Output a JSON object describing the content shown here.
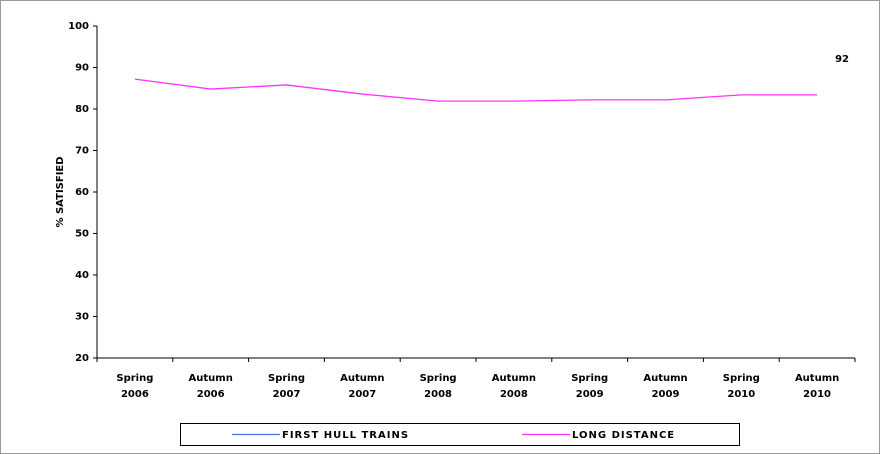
{
  "chart_data": {
    "type": "line",
    "y_label": "% SATISFIED",
    "categories": [
      "Spring 2006",
      "Autumn 2006",
      "Spring 2007",
      "Autumn 2007",
      "Spring 2008",
      "Autumn 2008",
      "Spring 2009",
      "Autumn 2009",
      "Spring 2010",
      "Autumn 2010"
    ],
    "series": [
      {
        "name": "FIRST HULL TRAINS",
        "color": "#4f6fe0",
        "data_labels": true,
        "values": [
          null,
          null,
          null,
          null,
          null,
          null,
          null,
          null,
          null,
          92
        ]
      },
      {
        "name": "LONG DISTANCE",
        "color": "#ff33ff",
        "values": [
          87.2,
          84.8,
          85.8,
          83.6,
          81.9,
          81.9,
          82.2,
          82.2,
          83.4,
          83.4
        ]
      }
    ],
    "ylim": [
      20,
      100
    ],
    "yticks": [
      20,
      30,
      40,
      50,
      60,
      70,
      80,
      90,
      100
    ],
    "legend": "bottom"
  }
}
